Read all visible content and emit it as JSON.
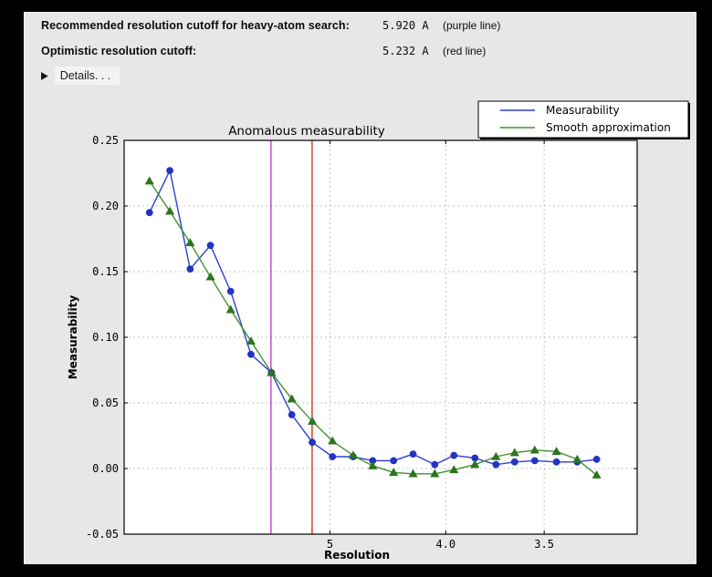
{
  "header": {
    "rows": [
      {
        "label": "Recommended resolution cutoff for heavy-atom search:",
        "value": "5.920 A",
        "note": "(purple line)"
      },
      {
        "label": "Optimistic resolution cutoff:",
        "value": "5.232 A",
        "note": "(red line)"
      }
    ],
    "details": {
      "icon": "▶",
      "label": "Details. . ."
    }
  },
  "chart_data": {
    "type": "line",
    "title": "Anomalous measurability",
    "xlabel": "Resolution",
    "ylabel": "Measurability",
    "x_axis": {
      "scale": "inverse_d_squared",
      "s2_range": [
        0.0,
        0.0997
      ],
      "ticks": [
        {
          "d": 5.0,
          "label": "5"
        },
        {
          "d": 4.0,
          "label": "4.0"
        },
        {
          "d": 3.5,
          "label": "3.5"
        }
      ]
    },
    "y_axis": {
      "range": [
        -0.05,
        0.25
      ],
      "ticks": [
        0.25,
        0.2,
        0.15,
        0.1,
        0.05,
        0.0,
        -0.05
      ]
    },
    "resolution_d": [
      14.25,
      10.61,
      8.83,
      7.72,
      6.95,
      6.37,
      5.91,
      5.54,
      5.23,
      4.97,
      4.74,
      4.55,
      4.37,
      4.22,
      4.07,
      3.95,
      3.83,
      3.72,
      3.63,
      3.54,
      3.45,
      3.37,
      3.3
    ],
    "series": [
      {
        "name": "Measurability",
        "marker": "circle",
        "line_color": "#2c3fd3",
        "marker_color": "#2333c4",
        "values": [
          0.195,
          0.227,
          0.152,
          0.17,
          0.135,
          0.087,
          0.073,
          0.041,
          0.02,
          0.009,
          0.009,
          0.006,
          0.006,
          0.011,
          0.003,
          0.01,
          0.008,
          0.003,
          0.005,
          0.006,
          0.005,
          0.005,
          0.007
        ]
      },
      {
        "name": "Smooth approximation",
        "marker": "triangle",
        "line_color": "#43922c",
        "marker_color": "#2e7420",
        "values": [
          0.219,
          0.196,
          0.172,
          0.146,
          0.121,
          0.097,
          0.073,
          0.053,
          0.036,
          0.021,
          0.01,
          0.002,
          -0.003,
          -0.004,
          -0.004,
          -0.001,
          0.003,
          0.009,
          0.012,
          0.014,
          0.013,
          0.007,
          -0.005
        ]
      }
    ],
    "vlines": [
      {
        "name": "recommended-cutoff-line",
        "d": 5.92,
        "color": "#c33fc3"
      },
      {
        "name": "optimistic-cutoff-line",
        "d": 5.232,
        "color": "#cc3a10"
      }
    ],
    "legend": {
      "position": "top-right",
      "entries": [
        "Measurability",
        "Smooth approximation"
      ]
    },
    "grid": true,
    "colors": {
      "plot_bg": "#ffffff",
      "figure_bg": "#e7e7e7",
      "grid": "#c6c6c6",
      "spine": "#000000"
    }
  }
}
